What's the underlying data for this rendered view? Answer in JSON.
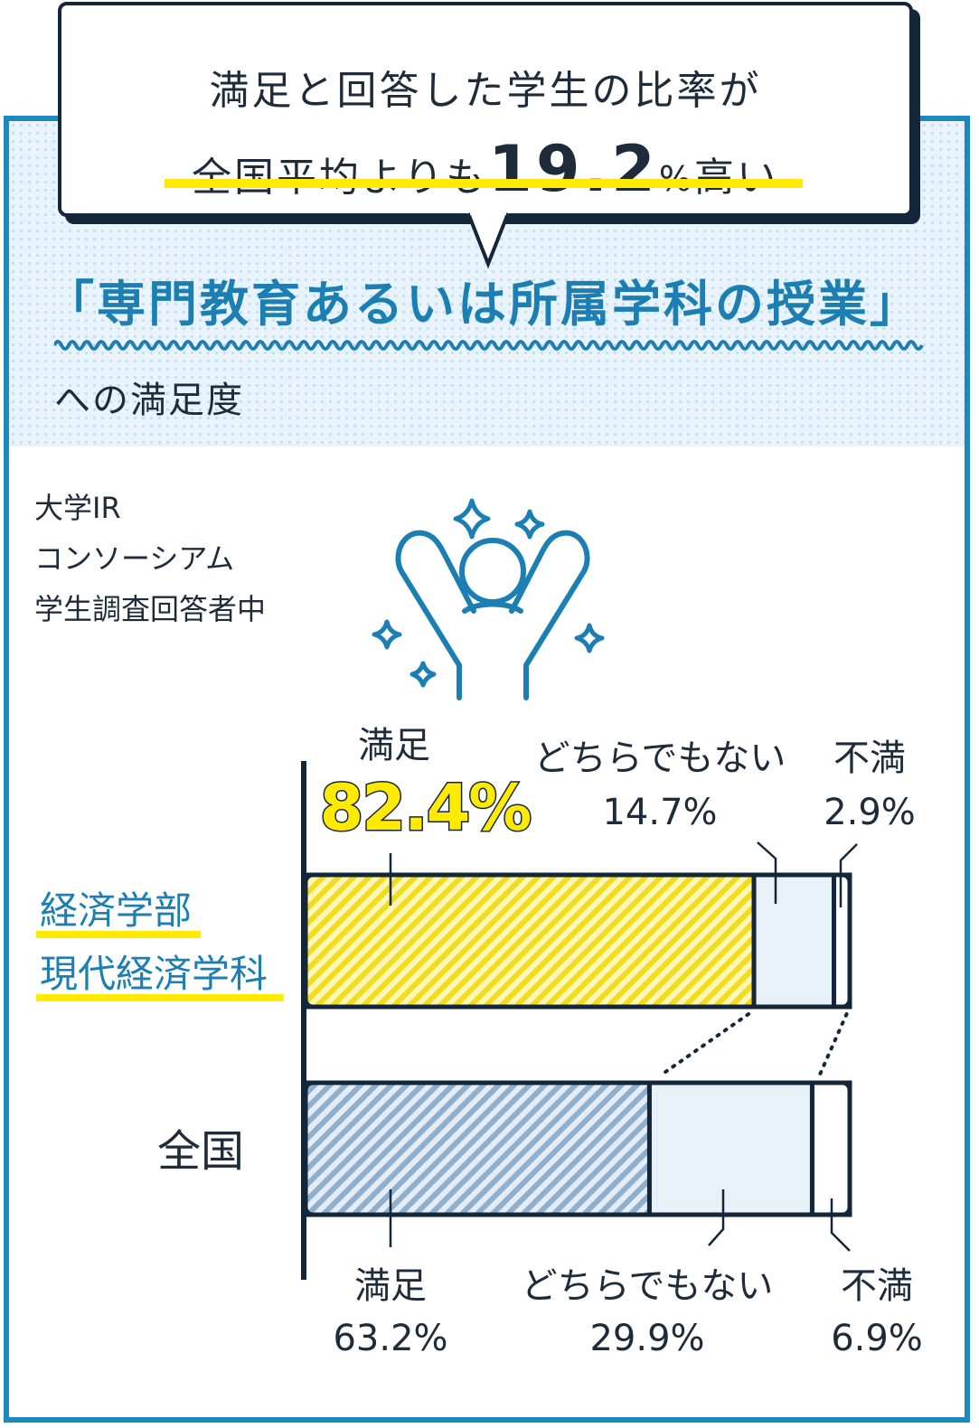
{
  "bubble": {
    "line1": "満足と回答した学生の比率が",
    "line2_prefix": "全国平均よりも",
    "line2_value": "19.2",
    "line2_unit": "%",
    "line2_suffix": "高い"
  },
  "topic": {
    "title": "「専門教育あるいは所属学科の授業」",
    "suffix": "への満足度"
  },
  "source": [
    "大学IR",
    "コンソーシアム",
    "学生調査回答者中"
  ],
  "icons": {
    "person": "cheering-person-icon",
    "sparkle": "sparkle-icon"
  },
  "colors": {
    "frame": "#1b89bf",
    "accent_text": "#1b7fb4",
    "highlight": "#ffea00",
    "satisfied_dept": "#f2dc1f",
    "satisfied_national": "#8fb0cc",
    "neutral_fill": "#e9f1f8",
    "outline": "#14273a"
  },
  "chart_data": {
    "type": "bar",
    "orientation": "horizontal",
    "stacked": true,
    "unit": "%",
    "categories": [
      "経済学部 現代経済学科",
      "全国"
    ],
    "category_lines": [
      [
        "経済学部",
        "現代経済学科"
      ],
      [
        "全国"
      ]
    ],
    "series": [
      {
        "name": "満足",
        "values": [
          82.4,
          63.2
        ]
      },
      {
        "name": "どちらでもない",
        "values": [
          14.7,
          29.9
        ]
      },
      {
        "name": "不満",
        "values": [
          2.9,
          6.9
        ]
      }
    ],
    "value_labels": {
      "satisfied": [
        "82.4%",
        "63.2%"
      ],
      "neutral": [
        "14.7%",
        "29.9%"
      ],
      "dissatisfied": [
        "2.9%",
        "6.9%"
      ]
    },
    "xlim": [
      0,
      100
    ]
  }
}
